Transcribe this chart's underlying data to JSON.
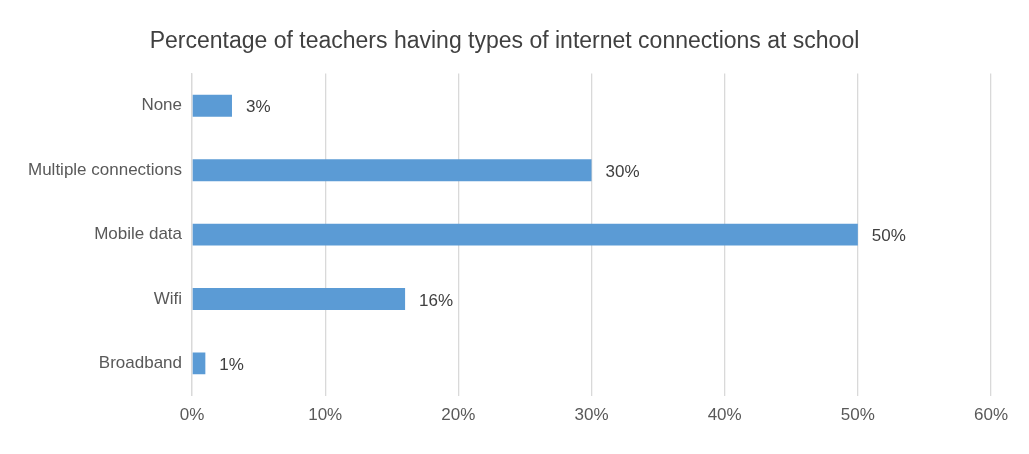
{
  "chart_data": {
    "type": "bar",
    "orientation": "horizontal",
    "title": "Percentage of teachers having types of internet connections at school",
    "categories": [
      "None",
      "Multiple connections",
      "Mobile data",
      "Wifi",
      "Broadband"
    ],
    "values": [
      3,
      30,
      50,
      16,
      1
    ],
    "value_labels": [
      "3%",
      "30%",
      "50%",
      "16%",
      "1%"
    ],
    "color": "#5b9bd5",
    "xlim": [
      0,
      60
    ],
    "xticks": [
      {
        "value": 0,
        "label": "0%"
      },
      {
        "value": 10,
        "label": "10%"
      },
      {
        "value": 20,
        "label": "20%"
      },
      {
        "value": 30,
        "label": "30%"
      },
      {
        "value": 40,
        "label": "40%"
      },
      {
        "value": 50,
        "label": "50%"
      },
      {
        "value": 60,
        "label": "60%"
      }
    ],
    "grid": "x",
    "legend": false
  }
}
